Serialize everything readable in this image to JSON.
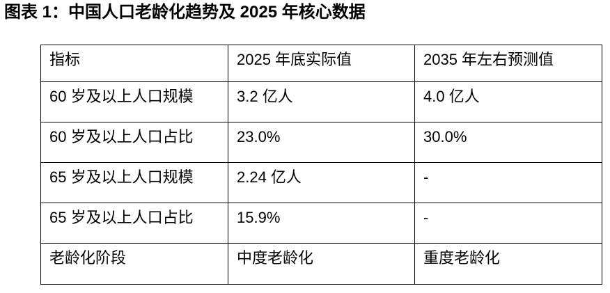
{
  "page": {
    "title": "图表 1：中国人口老龄化趋势及 2025 年核心数据"
  },
  "table": {
    "headers": [
      "指标",
      "2025 年底实际值",
      "2035 年左右预测值"
    ],
    "rows": [
      {
        "cells": [
          "60 岁及以上人口规模",
          "3.2 亿人",
          "4.0 亿人"
        ]
      },
      {
        "cells": [
          "60 岁及以上人口占比",
          "23.0%",
          "30.0%"
        ]
      },
      {
        "cells": [
          "65 岁及以上人口规模",
          "2.24 亿人",
          "-"
        ]
      },
      {
        "cells": [
          "65 岁及以上人口占比",
          "15.9%",
          "-"
        ]
      },
      {
        "cells": [
          "老龄化阶段",
          "中度老龄化",
          "重度老龄化"
        ]
      }
    ]
  },
  "chart_data": {
    "type": "table",
    "title": "图表 1：中国人口老龄化趋势及 2025 年核心数据",
    "columns": [
      "指标",
      "2025 年底实际值",
      "2035 年左右预测值"
    ],
    "rows": [
      [
        "60 岁及以上人口规模",
        "3.2 亿人",
        "4.0 亿人"
      ],
      [
        "60 岁及以上人口占比",
        "23.0%",
        "30.0%"
      ],
      [
        "65 岁及以上人口规模",
        "2.24 亿人",
        "-"
      ],
      [
        "65 岁及以上人口占比",
        "15.9%",
        "-"
      ],
      [
        "老龄化阶段",
        "中度老龄化",
        "重度老龄化"
      ]
    ]
  },
  "colors": {
    "background": "#ffffff",
    "text": "#000000",
    "border": "#000000"
  }
}
